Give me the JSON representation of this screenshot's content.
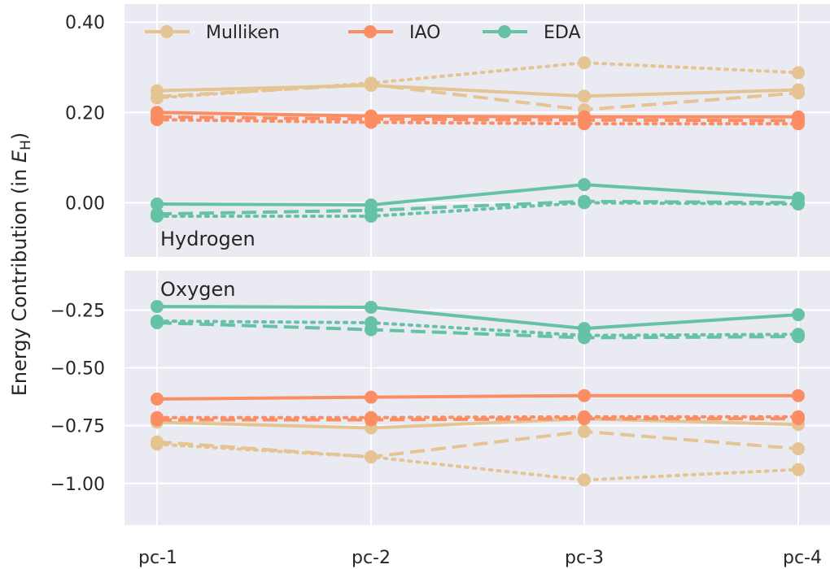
{
  "chart_data": {
    "type": "line",
    "ylabel": "Energy Contribution (in E_H)",
    "ylabel_parts": {
      "main": "Energy Contribution (in ",
      "var": "E",
      "sub": "H",
      "close": ")"
    },
    "categories": [
      "pc-1",
      "pc-2",
      "pc-3",
      "pc-4"
    ],
    "legend": {
      "placement": "top",
      "entries": [
        {
          "name": "Mulliken",
          "color": "#e5c494"
        },
        {
          "name": "IAO",
          "color": "#fc8d62"
        },
        {
          "name": "EDA",
          "color": "#66c2a5"
        }
      ]
    },
    "grid": true,
    "panels": [
      {
        "label": "Hydrogen",
        "ylim": [
          -0.12,
          0.44
        ],
        "yticks": [
          0.0,
          0.2,
          0.4
        ],
        "ytick_labels": [
          "0.00",
          "0.20",
          "0.40"
        ],
        "series": [
          {
            "method": "Mulliken",
            "style": "solid",
            "values": [
              0.248,
              0.26,
              0.236,
              0.25
            ]
          },
          {
            "method": "Mulliken",
            "style": "dashed",
            "values": [
              0.235,
              0.262,
              0.206,
              0.243
            ]
          },
          {
            "method": "Mulliken",
            "style": "dotted",
            "values": [
              0.232,
              0.265,
              0.31,
              0.288
            ]
          },
          {
            "method": "IAO",
            "style": "solid",
            "values": [
              0.2,
              0.192,
              0.19,
              0.19
            ]
          },
          {
            "method": "IAO",
            "style": "dashed",
            "values": [
              0.19,
              0.185,
              0.183,
              0.182
            ]
          },
          {
            "method": "IAO",
            "style": "dotted",
            "values": [
              0.184,
              0.178,
              0.175,
              0.175
            ]
          },
          {
            "method": "EDA",
            "style": "solid",
            "values": [
              -0.003,
              -0.005,
              0.04,
              0.01
            ]
          },
          {
            "method": "EDA",
            "style": "dashed",
            "values": [
              -0.025,
              -0.017,
              0.003,
              0.0
            ]
          },
          {
            "method": "EDA",
            "style": "dotted",
            "values": [
              -0.03,
              -0.03,
              0.0,
              -0.003
            ]
          }
        ]
      },
      {
        "label": "Oxygen",
        "ylim": [
          -1.18,
          -0.08
        ],
        "yticks": [
          -0.25,
          -0.5,
          -0.75,
          -1.0
        ],
        "ytick_labels": [
          "−0.25",
          "−0.50",
          "−0.75",
          "−1.00"
        ],
        "series": [
          {
            "method": "Mulliken",
            "style": "solid",
            "values": [
              -0.735,
              -0.76,
              -0.72,
              -0.745
            ]
          },
          {
            "method": "Mulliken",
            "style": "dashed",
            "values": [
              -0.82,
              -0.885,
              -0.775,
              -0.85
            ]
          },
          {
            "method": "Mulliken",
            "style": "dotted",
            "values": [
              -0.83,
              -0.885,
              -0.985,
              -0.94
            ]
          },
          {
            "method": "IAO",
            "style": "solid",
            "values": [
              -0.635,
              -0.627,
              -0.62,
              -0.62
            ]
          },
          {
            "method": "IAO",
            "style": "dashed",
            "values": [
              -0.725,
              -0.725,
              -0.72,
              -0.72
            ]
          },
          {
            "method": "IAO",
            "style": "dotted",
            "values": [
              -0.715,
              -0.715,
              -0.712,
              -0.712
            ]
          },
          {
            "method": "EDA",
            "style": "solid",
            "values": [
              -0.235,
              -0.238,
              -0.33,
              -0.27
            ]
          },
          {
            "method": "EDA",
            "style": "dashed",
            "values": [
              -0.305,
              -0.335,
              -0.37,
              -0.365
            ]
          },
          {
            "method": "EDA",
            "style": "dotted",
            "values": [
              -0.298,
              -0.305,
              -0.36,
              -0.355
            ]
          }
        ]
      }
    ]
  }
}
